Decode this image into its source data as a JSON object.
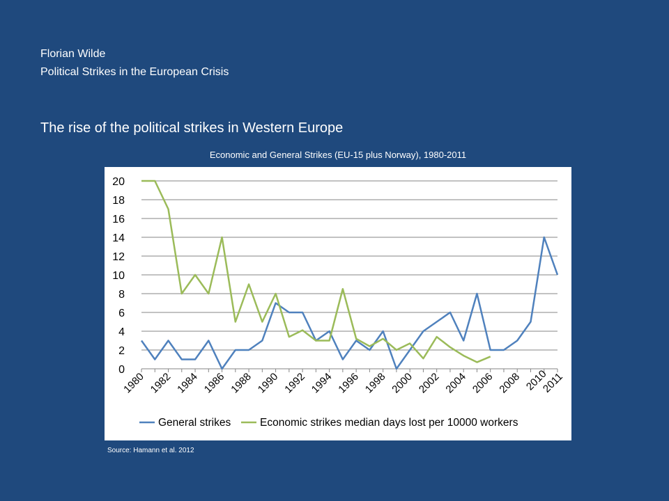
{
  "slide": {
    "author": "Florian Wilde",
    "subtitle": "Political Strikes in the European Crisis",
    "heading": "The rise of the political strikes in Western Europe",
    "source": "Source: Hamann et al. 2012"
  },
  "colors": {
    "background": "#1f497d",
    "general": "#4f81bd",
    "economic": "#9bbb59",
    "grid": "#868686"
  },
  "chart_data": {
    "type": "line",
    "title": "Economic and General Strikes (EU-15 plus Norway), 1980-2011",
    "xlabel": "",
    "ylabel": "",
    "ylim": [
      0,
      20
    ],
    "y_ticks": [
      "0",
      "2",
      "4",
      "6",
      "8",
      "10",
      "12",
      "14",
      "16",
      "18",
      "20"
    ],
    "x_tick_labels": [
      "1980",
      "1982",
      "1984",
      "1986",
      "1988",
      "1990",
      "1992",
      "1994",
      "1996",
      "1998",
      "2000",
      "2002",
      "2004",
      "2006",
      "2008",
      "2010",
      "2011"
    ],
    "grid": true,
    "legend": "bottom",
    "x": [
      1980,
      1981,
      1982,
      1983,
      1984,
      1985,
      1986,
      1987,
      1988,
      1989,
      1990,
      1991,
      1992,
      1993,
      1994,
      1995,
      1996,
      1997,
      1998,
      1999,
      2000,
      2001,
      2002,
      2003,
      2004,
      2005,
      2006,
      2007,
      2008,
      2009,
      2010,
      2011
    ],
    "series": [
      {
        "name": "General strikes",
        "values": [
          3,
          1,
          3,
          1,
          1,
          3,
          0,
          2,
          2,
          3,
          7,
          6,
          6,
          3,
          4,
          1,
          3,
          2,
          4,
          0,
          2,
          4,
          5,
          6,
          3,
          8,
          2,
          2,
          3,
          5,
          14,
          10
        ]
      },
      {
        "name": "Economic strikes median days lost per 10000 workers",
        "values": [
          20,
          20,
          17,
          8,
          10,
          8,
          14,
          5,
          9,
          5,
          8,
          3.4,
          4.1,
          3,
          3,
          8.5,
          3.2,
          2.4,
          3.2,
          2,
          2.7,
          1.1,
          3.4,
          2.3,
          1.4,
          0.7,
          1.3,
          null,
          null,
          null,
          null,
          null
        ]
      }
    ]
  }
}
